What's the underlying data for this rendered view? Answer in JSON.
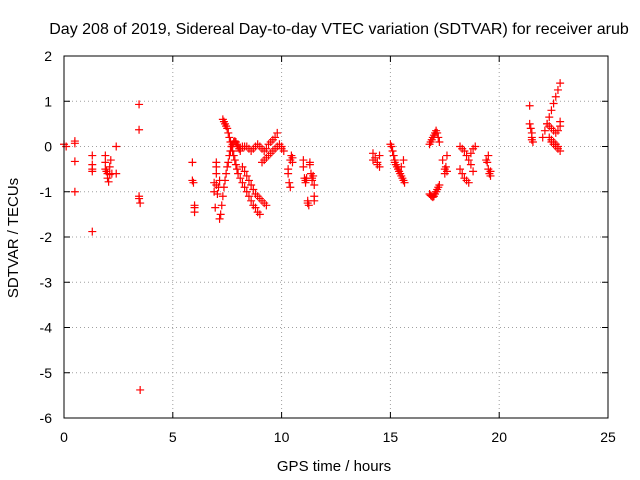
{
  "chart_data": {
    "type": "scatter",
    "title": "Day 208 of 2019, Sidereal Day-to-day VTEC variation (SDTVAR) for receiver arub",
    "xlabel": "GPS time / hours",
    "ylabel": "SDTVAR / TECUs",
    "xlim": [
      0,
      25
    ],
    "ylim": [
      -6,
      2
    ],
    "xticks": [
      "0",
      "5",
      "10",
      "15",
      "20",
      "25"
    ],
    "yticks": [
      "-6",
      "-5",
      "-4",
      "-3",
      "-2",
      "-1",
      "0",
      "1",
      "2"
    ],
    "grid": true,
    "marker": "+",
    "color": "#ff0000",
    "series": [
      {
        "name": "SDTVAR",
        "x": [
          0.0,
          0.1,
          0.5,
          0.5,
          0.5,
          0.5,
          1.3,
          1.3,
          1.3,
          1.3,
          1.3,
          1.9,
          1.9,
          1.9,
          1.95,
          2.0,
          2.0,
          2.05,
          2.1,
          2.1,
          2.15,
          2.2,
          2.4,
          2.4,
          3.45,
          3.45,
          3.45,
          3.45,
          3.5,
          3.5,
          5.9,
          5.9,
          5.95,
          6.0,
          6.0,
          6.0,
          6.9,
          6.9,
          6.95,
          7.0,
          7.0,
          7.0,
          7.0,
          7.05,
          7.1,
          7.15,
          7.15,
          7.2,
          7.25,
          7.3,
          7.35,
          7.4,
          7.45,
          7.5,
          7.55,
          7.6,
          7.65,
          7.7,
          7.75,
          7.8,
          7.85,
          7.9,
          7.95,
          8.0,
          8.05,
          8.1,
          8.1,
          8.2,
          8.3,
          8.4,
          8.5,
          8.6,
          8.7,
          8.8,
          8.9,
          9.0,
          9.1,
          9.2,
          9.3,
          9.4,
          9.5,
          9.6,
          9.7,
          9.8,
          8.2,
          8.3,
          8.4,
          8.5,
          8.6,
          8.7,
          8.8,
          8.9,
          9.0,
          9.1,
          9.2,
          9.3,
          7.3,
          7.35,
          7.4,
          7.45,
          7.5,
          7.55,
          7.6,
          7.65,
          7.7,
          7.75,
          7.8,
          7.85,
          7.9,
          7.95,
          8.0,
          8.1,
          8.2,
          8.3,
          8.4,
          8.5,
          8.6,
          8.7,
          8.8,
          8.9,
          9.0,
          9.1,
          9.2,
          9.3,
          9.4,
          9.5,
          9.6,
          9.7,
          9.8,
          9.9,
          10.0,
          10.0,
          10.1,
          10.3,
          10.3,
          10.35,
          10.4,
          10.4,
          10.45,
          10.5,
          10.5,
          11.0,
          11.0,
          11.05,
          11.1,
          11.1,
          11.15,
          11.2,
          11.2,
          11.25,
          11.3,
          11.3,
          11.35,
          11.4,
          11.4,
          11.45,
          11.5,
          11.5,
          11.5,
          14.2,
          14.2,
          14.3,
          14.4,
          14.4,
          14.5,
          14.5,
          15.0,
          15.05,
          15.1,
          15.15,
          15.2,
          15.2,
          15.25,
          15.3,
          15.35,
          15.4,
          15.45,
          15.5,
          15.55,
          15.6,
          15.65,
          15.6,
          15.5,
          16.8,
          16.85,
          16.9,
          16.95,
          17.0,
          17.05,
          17.1,
          17.15,
          17.2,
          17.25,
          16.8,
          16.85,
          16.9,
          16.95,
          17.0,
          17.05,
          17.1,
          17.15,
          17.2,
          17.25,
          17.4,
          17.5,
          17.5,
          17.55,
          17.6,
          17.6,
          18.2,
          18.3,
          18.4,
          18.5,
          18.6,
          18.7,
          18.8,
          18.9,
          18.2,
          18.3,
          18.4,
          18.5,
          18.6,
          18.7,
          18.8,
          19.4,
          19.45,
          19.5,
          19.5,
          19.55,
          19.6,
          19.6,
          21.4,
          21.4,
          21.45,
          21.5,
          21.5,
          21.5,
          21.55,
          22.0,
          22.1,
          22.2,
          22.3,
          22.4,
          22.5,
          22.6,
          22.7,
          22.8,
          22.4,
          22.5,
          22.6,
          22.7,
          22.8,
          22.2,
          22.3,
          22.4,
          22.5,
          22.6,
          22.7,
          22.8,
          22.3,
          22.4,
          22.5,
          22.6,
          22.7,
          22.8
        ],
        "y": [
          0.05,
          0.0,
          -0.33,
          0.07,
          0.12,
          -1.0,
          -0.2,
          -0.4,
          -0.5,
          -0.55,
          -1.88,
          -0.2,
          -0.35,
          -0.5,
          -0.55,
          -0.6,
          -0.7,
          -0.78,
          -0.62,
          -0.45,
          -0.3,
          -0.6,
          0.0,
          -0.6,
          0.93,
          0.37,
          -1.1,
          -1.15,
          -1.25,
          -5.38,
          -0.35,
          -0.75,
          -0.8,
          -1.3,
          -1.35,
          -1.45,
          -0.8,
          -1.0,
          -1.35,
          -0.35,
          -0.45,
          -0.6,
          -0.85,
          -1.05,
          -0.9,
          -0.75,
          -1.6,
          -1.5,
          -1.3,
          -1.1,
          -0.9,
          -0.75,
          -0.6,
          -0.45,
          -0.35,
          -0.2,
          -0.1,
          0.0,
          0.05,
          0.1,
          0.12,
          0.1,
          0.05,
          0.0,
          -0.05,
          -0.1,
          -0.05,
          0.0,
          0.0,
          0.0,
          -0.05,
          -0.1,
          -0.05,
          0.0,
          0.05,
          0.0,
          -0.05,
          -0.1,
          -0.05,
          0.05,
          0.1,
          0.15,
          0.2,
          0.3,
          -0.45,
          -0.55,
          -0.65,
          -0.75,
          -0.85,
          -0.95,
          -1.05,
          -1.1,
          -1.15,
          -1.2,
          -1.25,
          -1.3,
          0.6,
          0.55,
          0.5,
          0.45,
          0.4,
          0.3,
          0.2,
          0.1,
          0.0,
          -0.1,
          -0.2,
          -0.3,
          -0.4,
          -0.5,
          -0.6,
          -0.7,
          -0.8,
          -0.9,
          -1.0,
          -1.1,
          -1.2,
          -1.3,
          -1.35,
          -1.45,
          -1.5,
          -0.35,
          -0.3,
          -0.25,
          -0.2,
          -0.15,
          -0.1,
          -0.05,
          0.0,
          0.05,
          0.0,
          -0.05,
          -0.1,
          -0.5,
          -0.6,
          -0.8,
          -0.9,
          -0.3,
          -0.2,
          -0.25,
          -0.35,
          -0.45,
          -0.3,
          -0.7,
          -0.75,
          -0.8,
          -0.7,
          -1.2,
          -1.25,
          -1.3,
          -0.35,
          -0.4,
          -0.6,
          -0.7,
          -0.75,
          -0.65,
          -1.2,
          -1.1,
          -0.85,
          -0.15,
          -0.3,
          -0.25,
          -0.35,
          -0.4,
          -0.45,
          -0.2,
          0.05,
          0.0,
          -0.1,
          -0.2,
          -0.3,
          -0.35,
          -0.4,
          -0.45,
          -0.5,
          -0.55,
          -0.6,
          -0.65,
          -0.7,
          -0.75,
          -0.8,
          -0.3,
          -0.45,
          0.05,
          0.1,
          0.15,
          0.2,
          0.25,
          0.3,
          0.35,
          0.3,
          0.2,
          0.1,
          -1.05,
          -1.08,
          -1.1,
          -1.12,
          -1.1,
          -1.05,
          -1.0,
          -0.95,
          -0.9,
          -0.85,
          -0.3,
          -0.5,
          -0.6,
          -0.45,
          -0.2,
          -0.55,
          0.0,
          -0.05,
          -0.1,
          -0.2,
          -0.3,
          -0.15,
          -0.05,
          0.0,
          -0.5,
          -0.6,
          -0.7,
          -0.75,
          -0.8,
          -0.4,
          -0.55,
          -0.3,
          -0.35,
          -0.2,
          -0.5,
          -0.6,
          -0.55,
          -0.65,
          0.9,
          0.5,
          0.4,
          0.3,
          0.2,
          0.15,
          0.1,
          0.2,
          0.35,
          0.5,
          0.65,
          0.8,
          0.95,
          1.1,
          1.25,
          1.4,
          0.1,
          0.05,
          0.0,
          -0.05,
          -0.1,
          0.5,
          0.45,
          0.4,
          0.35,
          0.3,
          0.35,
          0.45,
          0.2,
          0.15,
          0.1,
          0.05,
          0.0,
          0.55
        ]
      }
    ]
  }
}
